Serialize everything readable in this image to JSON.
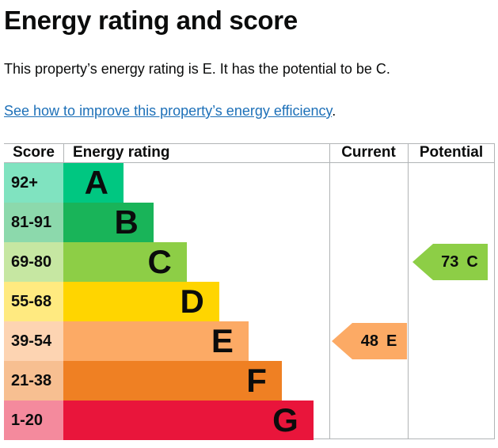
{
  "page": {
    "title": "Energy rating and score",
    "summary": "This property’s energy rating is E. It has the potential to be C.",
    "link_text": "See how to improve this property’s energy efficiency",
    "link_suffix": "."
  },
  "colors": {
    "text": "#0b0c0c",
    "link": "#1d70b8",
    "grid": "#b1b4b6"
  },
  "chart_data": {
    "type": "table",
    "title": "Energy rating and score",
    "columns": [
      "Score",
      "Energy rating",
      "Current",
      "Potential"
    ],
    "bands": [
      {
        "letter": "A",
        "score_range": "92+",
        "color": "#00c781",
        "score_tint": "#80e3c0",
        "bar_width_pct": 22.6
      },
      {
        "letter": "B",
        "score_range": "81-91",
        "color": "#19b459",
        "score_tint": "#8cd9ac",
        "bar_width_pct": 33.9
      },
      {
        "letter": "C",
        "score_range": "69-80",
        "color": "#8dce46",
        "score_tint": "#c6e7a2",
        "bar_width_pct": 46.4
      },
      {
        "letter": "D",
        "score_range": "55-68",
        "color": "#ffd500",
        "score_tint": "#ffea80",
        "bar_width_pct": 58.6
      },
      {
        "letter": "E",
        "score_range": "39-54",
        "color": "#fcaa65",
        "score_tint": "#fdd4b2",
        "bar_width_pct": 69.6
      },
      {
        "letter": "F",
        "score_range": "21-38",
        "color": "#ef8023",
        "score_tint": "#f7bf91",
        "bar_width_pct": 82.1
      },
      {
        "letter": "G",
        "score_range": "1-20",
        "color": "#e9153b",
        "score_tint": "#f48a9d",
        "bar_width_pct": 94.0
      }
    ],
    "current": {
      "value": 48,
      "band": "E",
      "color": "#fcaa65",
      "row_index": 4
    },
    "potential": {
      "value": 73,
      "band": "C",
      "color": "#8dce46",
      "row_index": 2
    }
  }
}
